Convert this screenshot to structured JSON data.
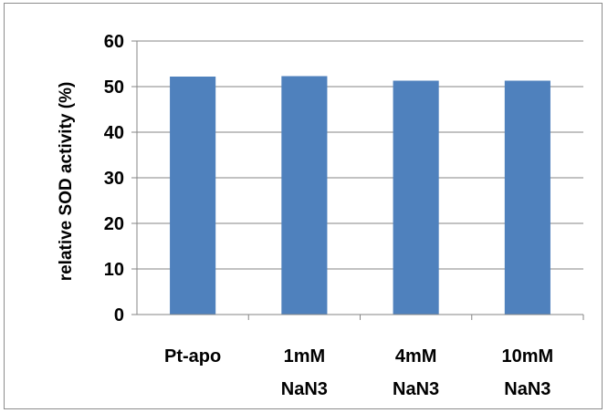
{
  "chart_data": {
    "type": "bar",
    "title": "",
    "xlabel": "",
    "ylabel": "relative SOD activity (%)",
    "ylim": [
      0,
      60
    ],
    "yticks": [
      0,
      10,
      20,
      30,
      40,
      50,
      60
    ],
    "grid": true,
    "legend": "none",
    "bar_color": "#4F81BD",
    "categories": [
      [
        "Pt-apo"
      ],
      [
        "1mM",
        "NaN3"
      ],
      [
        "4mM",
        "NaN3"
      ],
      [
        "10mM",
        "NaN3"
      ]
    ],
    "values": [
      52.2,
      52.3,
      51.3,
      51.3
    ]
  }
}
